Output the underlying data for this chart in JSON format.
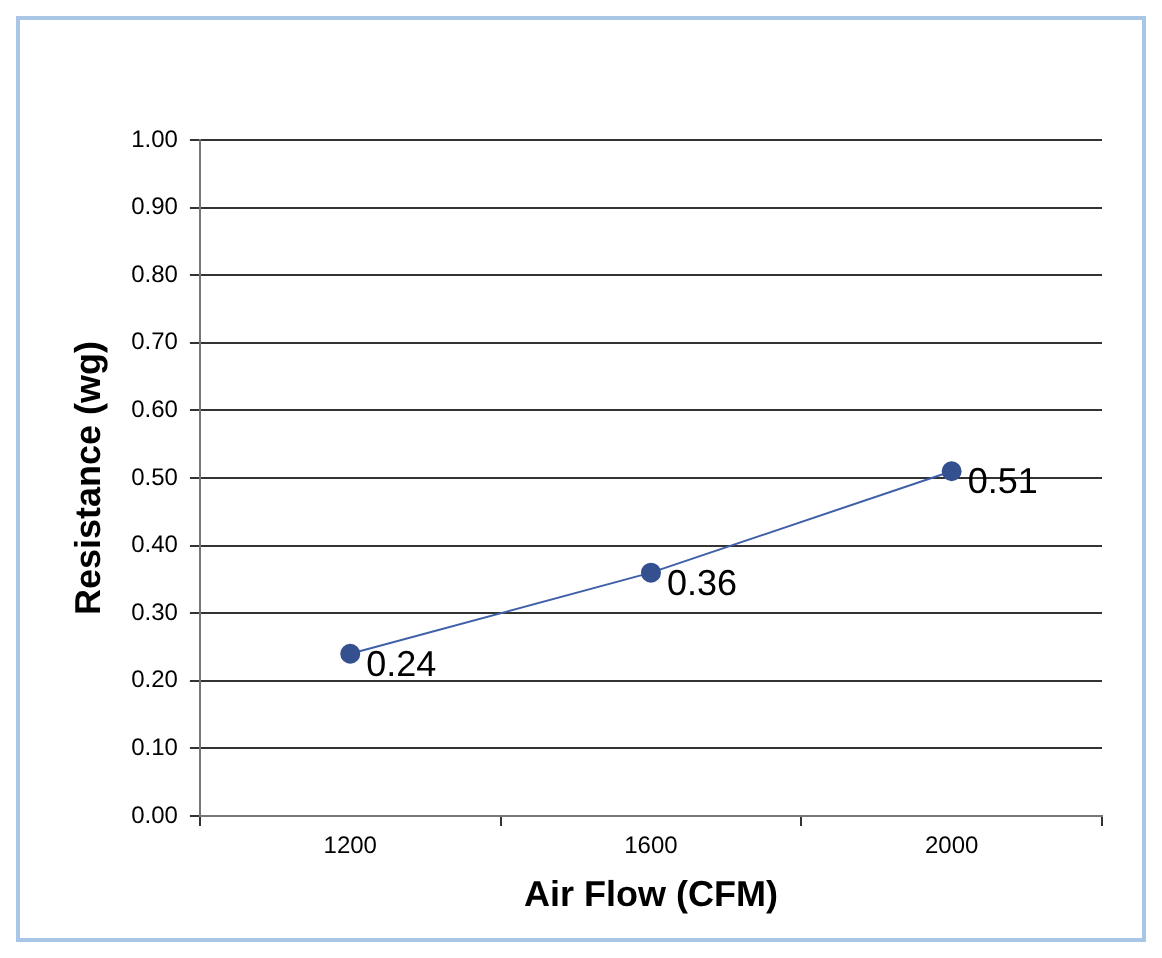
{
  "chart_data": {
    "type": "line",
    "xlabel": "Air Flow (CFM)",
    "ylabel": "Resistance (wg)",
    "categories": [
      "1200",
      "1600",
      "2000"
    ],
    "series": [
      {
        "color": "#3f5fa8",
        "values": [
          0.24,
          0.36,
          0.51
        ]
      }
    ],
    "ylim": [
      0,
      1
    ],
    "yticks": [
      {
        "value": 0,
        "label": "0.00"
      },
      {
        "value": 0.1,
        "label": "0.10"
      },
      {
        "value": 0.2,
        "label": "0.20"
      },
      {
        "value": 0.3,
        "label": "0.30"
      },
      {
        "value": 0.4,
        "label": "0.40"
      },
      {
        "value": 0.5,
        "label": "0.50"
      },
      {
        "value": 0.6,
        "label": "0.60"
      },
      {
        "value": 0.7,
        "label": "0.70"
      },
      {
        "value": 0.8,
        "label": "0.80"
      },
      {
        "value": 0.9,
        "label": "0.90"
      },
      {
        "value": 1,
        "label": "1.00"
      }
    ],
    "grid": "y",
    "marker": "circle",
    "line_style": "solid",
    "data_labels": true,
    "legend": false
  }
}
